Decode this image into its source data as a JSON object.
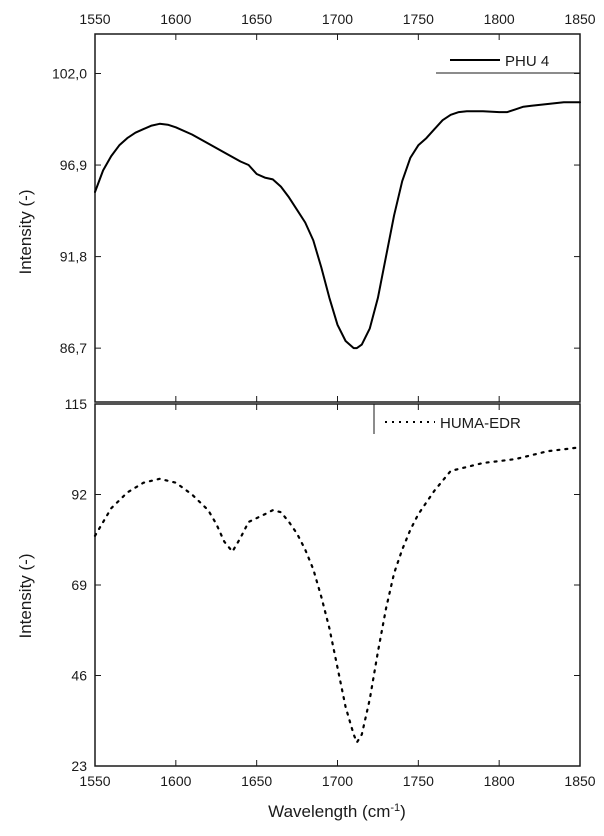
{
  "chart_data": [
    {
      "type": "line",
      "ylabel": "Intensity (-)",
      "x_ticks": [
        1550,
        1600,
        1650,
        1700,
        1750,
        1800,
        1850
      ],
      "x_tick_labels": [
        "1550",
        "1600",
        "1650",
        "1700",
        "1750",
        "1800",
        "1850"
      ],
      "xlim": [
        1550,
        1850
      ],
      "y_ticks": [
        86.7,
        91.8,
        96.9,
        102.0
      ],
      "y_tick_labels": [
        "86,7",
        "91,8",
        "96,9",
        "102,0"
      ],
      "ylim": [
        83.7,
        104.2
      ],
      "x_axis_position": "top",
      "legend": "top-right",
      "series": [
        {
          "name": "PHU 4",
          "line_style": "solid",
          "color": "#000000",
          "x": [
            1550,
            1555,
            1560,
            1565,
            1570,
            1575,
            1580,
            1585,
            1590,
            1595,
            1600,
            1610,
            1620,
            1630,
            1640,
            1645,
            1650,
            1655,
            1660,
            1665,
            1670,
            1675,
            1680,
            1685,
            1690,
            1695,
            1700,
            1705,
            1710,
            1712,
            1715,
            1720,
            1725,
            1730,
            1735,
            1740,
            1745,
            1750,
            1755,
            1760,
            1765,
            1770,
            1775,
            1780,
            1790,
            1800,
            1805,
            1810,
            1815,
            1820,
            1830,
            1840,
            1850
          ],
          "y": [
            95.4,
            96.6,
            97.4,
            98.0,
            98.4,
            98.7,
            98.9,
            99.1,
            99.2,
            99.15,
            99.0,
            98.6,
            98.1,
            97.6,
            97.1,
            96.9,
            96.4,
            96.2,
            96.1,
            95.7,
            95.1,
            94.4,
            93.7,
            92.7,
            91.2,
            89.5,
            88.0,
            87.1,
            86.7,
            86.7,
            86.9,
            87.8,
            89.5,
            91.8,
            94.1,
            96.0,
            97.3,
            98.0,
            98.4,
            98.9,
            99.4,
            99.7,
            99.85,
            99.9,
            99.9,
            99.85,
            99.85,
            100.0,
            100.15,
            100.2,
            100.3,
            100.4,
            100.4
          ]
        }
      ]
    },
    {
      "type": "line",
      "xlabel": "Wavelength (cm⁻¹)",
      "ylabel": "Intensity (-)",
      "x_ticks": [
        1550,
        1600,
        1650,
        1700,
        1750,
        1800,
        1850
      ],
      "x_tick_labels": [
        "1550",
        "1600",
        "1650",
        "1700",
        "1750",
        "1800",
        "1850"
      ],
      "xlim": [
        1550,
        1850
      ],
      "y_ticks": [
        23,
        46,
        69,
        92,
        115
      ],
      "y_tick_labels": [
        "23",
        "46",
        "69",
        "92",
        "115"
      ],
      "ylim": [
        23,
        115
      ],
      "legend": "top-right",
      "series": [
        {
          "name": "HUMA-EDR",
          "line_style": "dotted",
          "color": "#000000",
          "x": [
            1550,
            1560,
            1570,
            1580,
            1590,
            1600,
            1610,
            1620,
            1625,
            1630,
            1635,
            1640,
            1645,
            1650,
            1655,
            1660,
            1665,
            1670,
            1675,
            1680,
            1685,
            1690,
            1695,
            1700,
            1705,
            1710,
            1712,
            1715,
            1720,
            1725,
            1730,
            1735,
            1740,
            1745,
            1750,
            1760,
            1770,
            1780,
            1790,
            1800,
            1810,
            1820,
            1830,
            1840,
            1850
          ],
          "y": [
            81.5,
            88.5,
            92.5,
            95.0,
            96.0,
            95.0,
            92.0,
            88.0,
            84.5,
            80.0,
            77.5,
            81.0,
            85.0,
            86.0,
            87.0,
            88.0,
            87.5,
            85.0,
            82.0,
            78.0,
            73.0,
            66.0,
            58.0,
            48.0,
            38.0,
            31.0,
            29.0,
            31.0,
            40.0,
            52.0,
            63.0,
            72.0,
            78.0,
            83.0,
            87.0,
            93.0,
            98.0,
            99.0,
            100.0,
            100.5,
            101.0,
            102.0,
            103.0,
            103.5,
            104.0
          ]
        }
      ]
    }
  ]
}
